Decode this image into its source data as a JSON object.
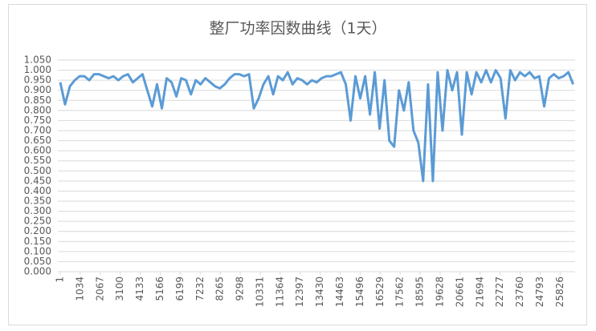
{
  "chart_data": {
    "type": "line",
    "title": "整厂功率因数曲线（1天）",
    "x": [
      1,
      251,
      501,
      751,
      1001,
      1251,
      1501,
      1751,
      2001,
      2251,
      2501,
      2751,
      3001,
      3251,
      3501,
      3751,
      4001,
      4251,
      4501,
      4751,
      5001,
      5251,
      5501,
      5751,
      6001,
      6251,
      6501,
      6751,
      7001,
      7251,
      7501,
      7751,
      8001,
      8251,
      8501,
      8751,
      9001,
      9251,
      9501,
      9751,
      10001,
      10251,
      10501,
      10751,
      11001,
      11251,
      11501,
      11751,
      12001,
      12251,
      12501,
      12751,
      13001,
      13251,
      13501,
      13751,
      14001,
      14251,
      14501,
      14751,
      15001,
      15251,
      15501,
      15751,
      16001,
      16251,
      16501,
      16751,
      17001,
      17251,
      17501,
      17751,
      18001,
      18251,
      18501,
      18751,
      19001,
      19251,
      19501,
      19751,
      20001,
      20251,
      20501,
      20751,
      21001,
      21251,
      21501,
      21751,
      22001,
      22251,
      22501,
      22751,
      23001,
      23251,
      23501,
      23751,
      24001,
      24251,
      24501,
      24751,
      25001,
      25251,
      25501,
      25751,
      26001,
      26251,
      26501
    ],
    "values": [
      0.94,
      0.83,
      0.92,
      0.95,
      0.97,
      0.97,
      0.95,
      0.98,
      0.98,
      0.97,
      0.96,
      0.97,
      0.95,
      0.97,
      0.98,
      0.94,
      0.96,
      0.98,
      0.9,
      0.82,
      0.93,
      0.81,
      0.96,
      0.94,
      0.87,
      0.96,
      0.95,
      0.88,
      0.95,
      0.93,
      0.96,
      0.94,
      0.92,
      0.91,
      0.93,
      0.96,
      0.98,
      0.98,
      0.97,
      0.98,
      0.81,
      0.86,
      0.93,
      0.97,
      0.88,
      0.97,
      0.95,
      0.99,
      0.93,
      0.96,
      0.95,
      0.93,
      0.95,
      0.94,
      0.96,
      0.97,
      0.97,
      0.98,
      0.99,
      0.93,
      0.75,
      0.97,
      0.86,
      0.97,
      0.78,
      0.99,
      0.71,
      0.95,
      0.65,
      0.62,
      0.9,
      0.8,
      0.94,
      0.7,
      0.64,
      0.45,
      0.93,
      0.45,
      0.99,
      0.7,
      1.0,
      0.9,
      0.99,
      0.68,
      0.99,
      0.88,
      0.99,
      0.94,
      1.0,
      0.94,
      1.0,
      0.96,
      0.76,
      1.0,
      0.95,
      0.99,
      0.97,
      0.99,
      0.96,
      0.97,
      0.82,
      0.96,
      0.98,
      0.96,
      0.97,
      0.99,
      0.93
    ],
    "color": "#5b9bd5",
    "xlim": [
      1,
      26600
    ],
    "xticks": [
      1,
      1034,
      2067,
      3100,
      4133,
      5166,
      6199,
      7232,
      8265,
      9298,
      10331,
      11364,
      12397,
      13430,
      14463,
      15496,
      16529,
      17562,
      18595,
      19628,
      20661,
      21694,
      22727,
      23760,
      24793,
      25826
    ],
    "ylim": [
      0,
      1.05
    ],
    "yticks": [
      {
        "value": 0,
        "label": "0.000"
      },
      {
        "value": 0.05,
        "label": "0.050"
      },
      {
        "value": 0.1,
        "label": "0.100"
      },
      {
        "value": 0.15,
        "label": "0.150"
      },
      {
        "value": 0.2,
        "label": "0.200"
      },
      {
        "value": 0.25,
        "label": "0.250"
      },
      {
        "value": 0.3,
        "label": "0.300"
      },
      {
        "value": 0.35,
        "label": "0.350"
      },
      {
        "value": 0.4,
        "label": "0.400"
      },
      {
        "value": 0.45,
        "label": "0.450"
      },
      {
        "value": 0.5,
        "label": "0.500"
      },
      {
        "value": 0.55,
        "label": "0.550"
      },
      {
        "value": 0.6,
        "label": "0.600"
      },
      {
        "value": 0.65,
        "label": "0.650"
      },
      {
        "value": 0.7,
        "label": "0.700"
      },
      {
        "value": 0.75,
        "label": "0.750"
      },
      {
        "value": 0.8,
        "label": "0.800"
      },
      {
        "value": 0.85,
        "label": "0.850"
      },
      {
        "value": 0.9,
        "label": "0.900"
      },
      {
        "value": 0.95,
        "label": "0.950"
      },
      {
        "value": 1.0,
        "label": "1.000"
      },
      {
        "value": 1.05,
        "label": "1.050"
      }
    ],
    "grid": true
  }
}
